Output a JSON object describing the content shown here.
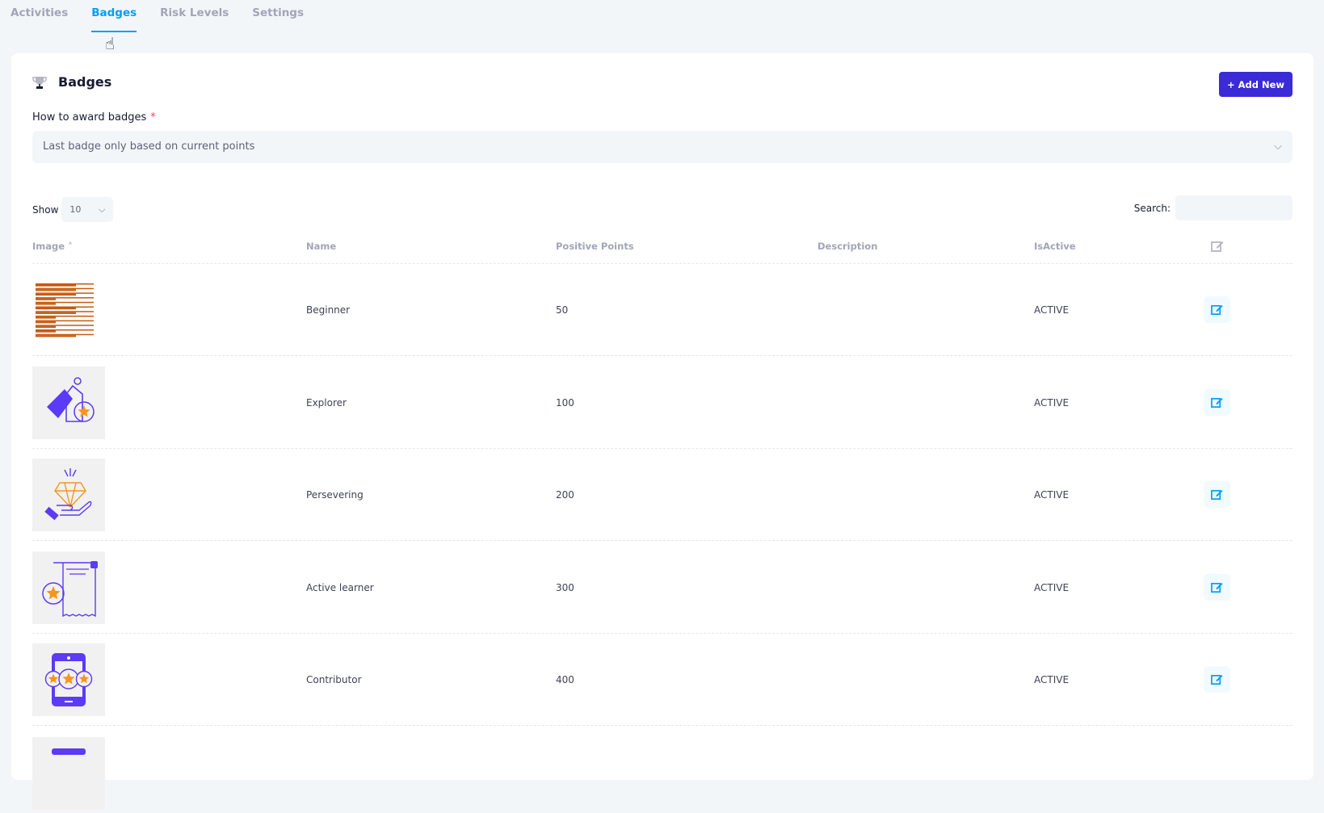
{
  "tabs": [
    {
      "label": "Activities"
    },
    {
      "label": "Badges",
      "active": true
    },
    {
      "label": "Risk Levels"
    },
    {
      "label": "Settings"
    }
  ],
  "card": {
    "title": "Badges",
    "title_icon": "trophy-icon",
    "add_button": "+ Add New",
    "accent": "#3a2bd6"
  },
  "award": {
    "label": "How to award badges",
    "required": "*",
    "value": "Last badge only based on current points"
  },
  "table_controls": {
    "show_label": "Show",
    "page_size": "10",
    "search_label": "Search:",
    "search_value": ""
  },
  "columns": [
    "Image",
    "Name",
    "Positive Points",
    "Description",
    "IsActive"
  ],
  "rows": [
    {
      "image": "striped-badge-image",
      "name": "Beginner",
      "points": "50",
      "description": "",
      "status": "ACTIVE"
    },
    {
      "image": "tag-star-image",
      "name": "Explorer",
      "points": "100",
      "description": "",
      "status": "ACTIVE"
    },
    {
      "image": "hand-diamond-image",
      "name": "Persevering",
      "points": "200",
      "description": "",
      "status": "ACTIVE"
    },
    {
      "image": "receipt-star-image",
      "name": "Active learner",
      "points": "300",
      "description": "",
      "status": "ACTIVE"
    },
    {
      "image": "phone-stars-image",
      "name": "Contributor",
      "points": "400",
      "description": "",
      "status": "ACTIVE"
    }
  ]
}
